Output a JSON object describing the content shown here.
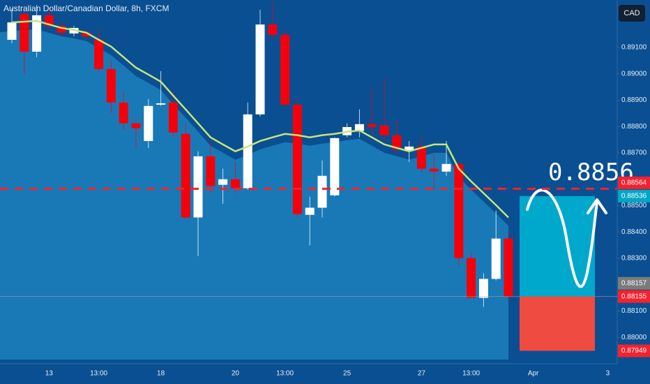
{
  "chart_data": {
    "type": "candlestick",
    "title": "Australian Dollar/Canadian Dollar, 8h, FXCM",
    "currency_button": "CAD",
    "annotation": "0.8856",
    "categories": [
      null,
      null,
      null,
      "13",
      null,
      null,
      null,
      "13:00",
      null,
      null,
      null,
      null,
      "18",
      null,
      null,
      null,
      null,
      null,
      "20",
      null,
      null,
      null,
      "13:00",
      null,
      null,
      null,
      null,
      "25",
      null,
      null,
      null,
      null,
      null,
      "27",
      null,
      null,
      null,
      "13:00",
      null,
      null,
      null,
      null,
      "Apr",
      null,
      null,
      null,
      null,
      null,
      "3"
    ],
    "open": [
      0.89129,
      0.89227,
      0.89084,
      0.89222,
      0.89182,
      0.89153,
      0.89156,
      0.89129,
      0.89018,
      0.88891,
      0.88812,
      0.88745,
      0.88883,
      0.88891,
      0.88772,
      0.88455,
      0.88687,
      0.88579,
      0.886,
      0.88566,
      0.88846,
      0.89187,
      0.89148,
      0.88883,
      0.88465,
      0.88492,
      0.88539,
      0.88767,
      0.88783,
      0.88809,
      0.88804,
      0.88767,
      0.88708,
      0.88724,
      0.8864,
      0.88629,
      0.88658,
      0.88301,
      0.8815,
      0.88222,
      0.88375,
      null,
      null,
      null,
      null,
      null,
      null,
      null,
      null
    ],
    "high": [
      0.89248,
      0.89261,
      0.89261,
      0.89248,
      0.89195,
      0.89182,
      0.89169,
      0.89169,
      0.8905,
      0.88931,
      0.88825,
      0.88904,
      0.8901,
      0.88931,
      0.88812,
      0.88706,
      0.88745,
      0.8864,
      0.88666,
      0.88891,
      0.89243,
      0.89275,
      0.89164,
      0.88904,
      0.88534,
      0.88671,
      0.88759,
      0.88812,
      0.88865,
      0.88944,
      0.88984,
      0.88825,
      0.88745,
      0.88759,
      0.88693,
      0.88745,
      0.88666,
      0.88322,
      0.88243,
      0.88481,
      0.88402,
      null,
      null,
      null,
      null,
      null,
      null,
      null,
      null
    ],
    "low": [
      0.89116,
      0.88997,
      0.89063,
      0.89169,
      0.89142,
      0.89142,
      0.89129,
      0.8901,
      0.88851,
      0.88785,
      0.88719,
      0.88719,
      0.88878,
      0.88759,
      0.88449,
      0.88309,
      0.88547,
      0.88507,
      0.88547,
      0.8856,
      0.88838,
      0.89129,
      0.88878,
      0.88455,
      0.88349,
      0.88455,
      0.88534,
      0.88759,
      0.88759,
      0.88772,
      0.88745,
      0.88693,
      0.88666,
      0.88626,
      0.8856,
      0.88613,
      0.88269,
      0.8815,
      0.88116,
      0.88216,
      0.88145,
      null,
      null,
      null,
      null,
      null,
      null,
      null,
      null
    ],
    "close": [
      0.89195,
      0.89084,
      0.89222,
      0.89182,
      0.89156,
      0.89174,
      0.89142,
      0.89018,
      0.88891,
      0.88812,
      0.88793,
      0.88878,
      0.88888,
      0.88777,
      0.88455,
      0.88687,
      0.88574,
      0.886,
      0.88566,
      0.88846,
      0.89187,
      0.89148,
      0.88883,
      0.88468,
      0.88492,
      0.88613,
      0.88756,
      0.88798,
      0.88809,
      0.88798,
      0.88767,
      0.88714,
      0.88724,
      0.8864,
      0.88629,
      0.88658,
      0.88301,
      0.8815,
      0.88222,
      0.88375,
      0.88155,
      null,
      null,
      null,
      null,
      null,
      null,
      null,
      null
    ],
    "up_color": "#ffffff",
    "down_color": "#f5000a",
    "moving_average": {
      "color": "#c4e67a",
      "fill": "#1b7dbb",
      "values": [
        0.89195,
        0.89198,
        0.89201,
        0.89187,
        0.89174,
        0.89166,
        0.89156,
        0.89129,
        0.89103,
        0.89063,
        0.89023,
        0.88997,
        0.8897,
        0.88917,
        0.88865,
        0.88812,
        0.88759,
        0.88732,
        0.88706,
        0.88724,
        0.88745,
        0.88759,
        0.88772,
        0.88767,
        0.88759,
        0.88767,
        0.88772,
        0.8878,
        0.88785,
        0.88759,
        0.88732,
        0.88719,
        0.88706,
        0.88719,
        0.88732,
        0.88732,
        0.8864,
        0.88592,
        0.88547,
        0.88502,
        0.88455,
        null,
        null,
        null,
        null,
        null,
        null,
        null,
        null
      ]
    },
    "ylim": [
      0.879,
      0.8928
    ],
    "yticks": [
      {
        "value": 0.88,
        "label": "0.88000"
      },
      {
        "value": 0.881,
        "label": "0.88100"
      },
      {
        "value": 0.883,
        "label": "0.88300"
      },
      {
        "value": 0.884,
        "label": "0.88400"
      },
      {
        "value": 0.885,
        "label": "0.88500"
      },
      {
        "value": 0.887,
        "label": "0.88700"
      },
      {
        "value": 0.888,
        "label": "0.88800"
      },
      {
        "value": 0.889,
        "label": "0.88900"
      },
      {
        "value": 0.89,
        "label": "0.89000"
      },
      {
        "value": 0.891,
        "label": "0.89100"
      }
    ],
    "price_labels": [
      {
        "value": 0.88564,
        "color": "#f5212f"
      },
      {
        "value": 0.88536,
        "color": "#00a6c6"
      },
      {
        "value": 0.88157,
        "color": "#7b7b7b"
      },
      {
        "value": 0.88155,
        "color": "#f5212f"
      },
      {
        "value": 0.87949,
        "color": "#f5212f"
      }
    ],
    "target_color": "#00a8cc",
    "stop_color": "#f04b40"
  }
}
